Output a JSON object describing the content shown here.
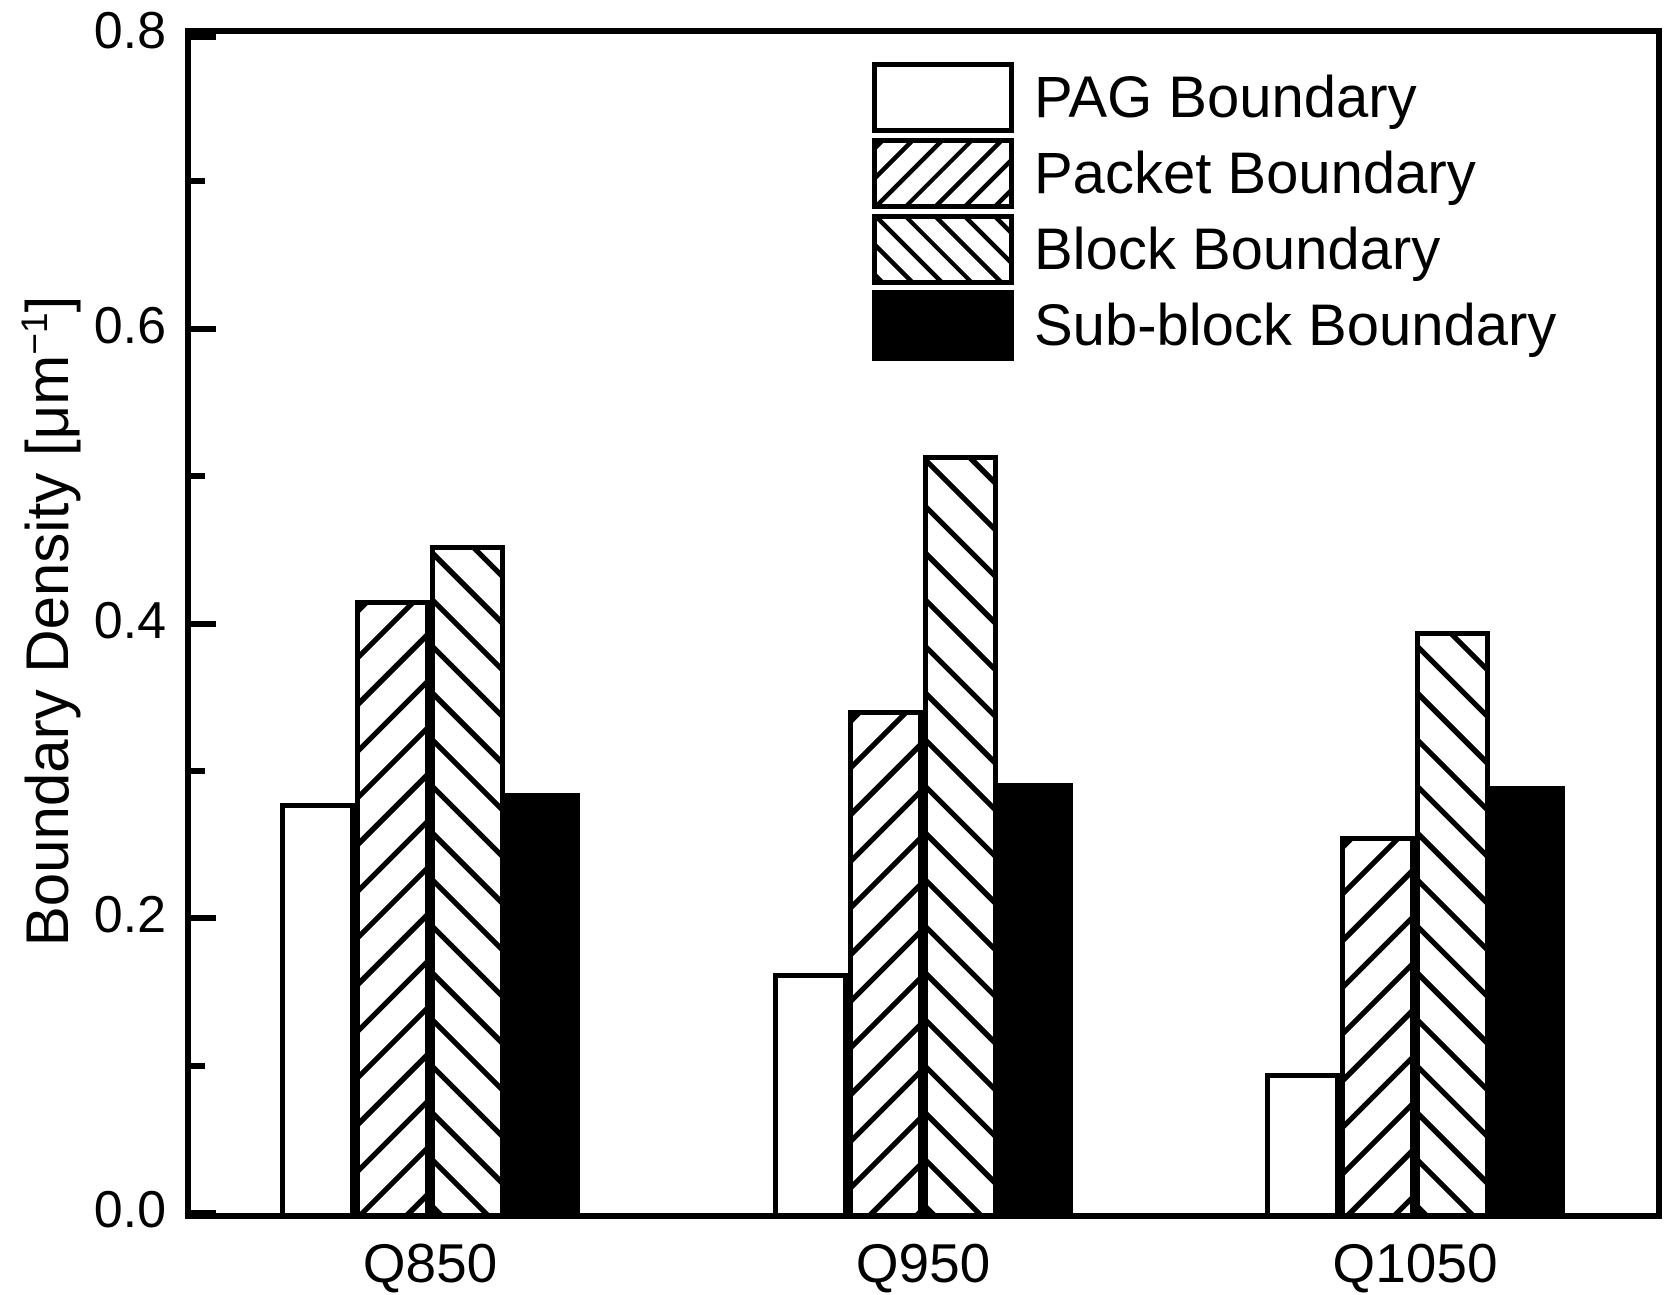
{
  "chart_data": {
    "type": "bar",
    "title": "",
    "xlabel": "",
    "ylabel": {
      "pre": "Boundary Density [μm",
      "sup": "−1",
      "post": "]"
    },
    "ylim": [
      0,
      0.8
    ],
    "grid": "off",
    "legend_position": "upper-right-inside",
    "colors": {
      "foreground": "#000000",
      "background": "#ffffff"
    },
    "categories": [
      "Q850",
      "Q950",
      "Q1050"
    ],
    "series": [
      {
        "name": "PAG Boundary",
        "pattern": "solid-white",
        "values": [
          0.278,
          0.163,
          0.095
        ]
      },
      {
        "name": "Packet Boundary",
        "pattern": "hatch-forward",
        "values": [
          0.416,
          0.341,
          0.256
        ]
      },
      {
        "name": "Block Boundary",
        "pattern": "hatch-backward",
        "values": [
          0.453,
          0.514,
          0.395
        ]
      },
      {
        "name": "Sub-block Boundary",
        "pattern": "solid-black",
        "values": [
          0.285,
          0.292,
          0.29
        ]
      }
    ],
    "yticks_major": [
      {
        "value": 0.8,
        "label": "0.8"
      },
      {
        "value": 0.6,
        "label": "0.6"
      },
      {
        "value": 0.4,
        "label": "0.4"
      },
      {
        "value": 0.2,
        "label": "0.2"
      },
      {
        "value": 0.0,
        "label": "0.0"
      }
    ],
    "yticks_minor": [
      0.7,
      0.5,
      0.3,
      0.1
    ]
  }
}
